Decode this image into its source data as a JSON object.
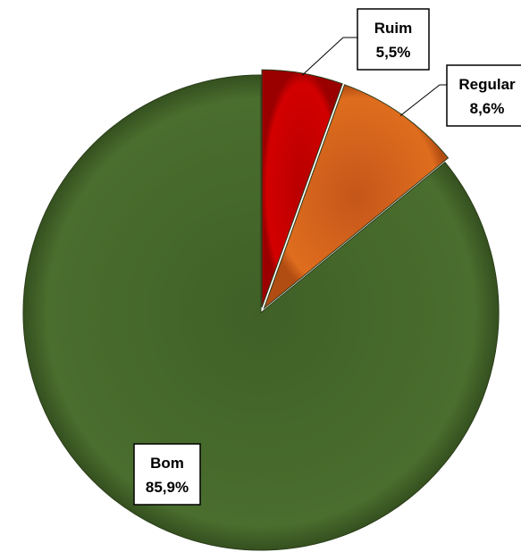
{
  "chart_data": {
    "type": "pie",
    "slices": [
      {
        "label": "Ruim",
        "value": 5.5,
        "value_text": "5,5%",
        "color": "#cc0000"
      },
      {
        "label": "Regular",
        "value": 8.6,
        "value_text": "8,6%",
        "color": "#d9661a"
      },
      {
        "label": "Bom",
        "value": 85.9,
        "value_text": "85,9%",
        "color": "#476b2c"
      }
    ],
    "start_angle": "12 o'clock",
    "direction": "clockwise",
    "title": "",
    "legend": "none"
  }
}
